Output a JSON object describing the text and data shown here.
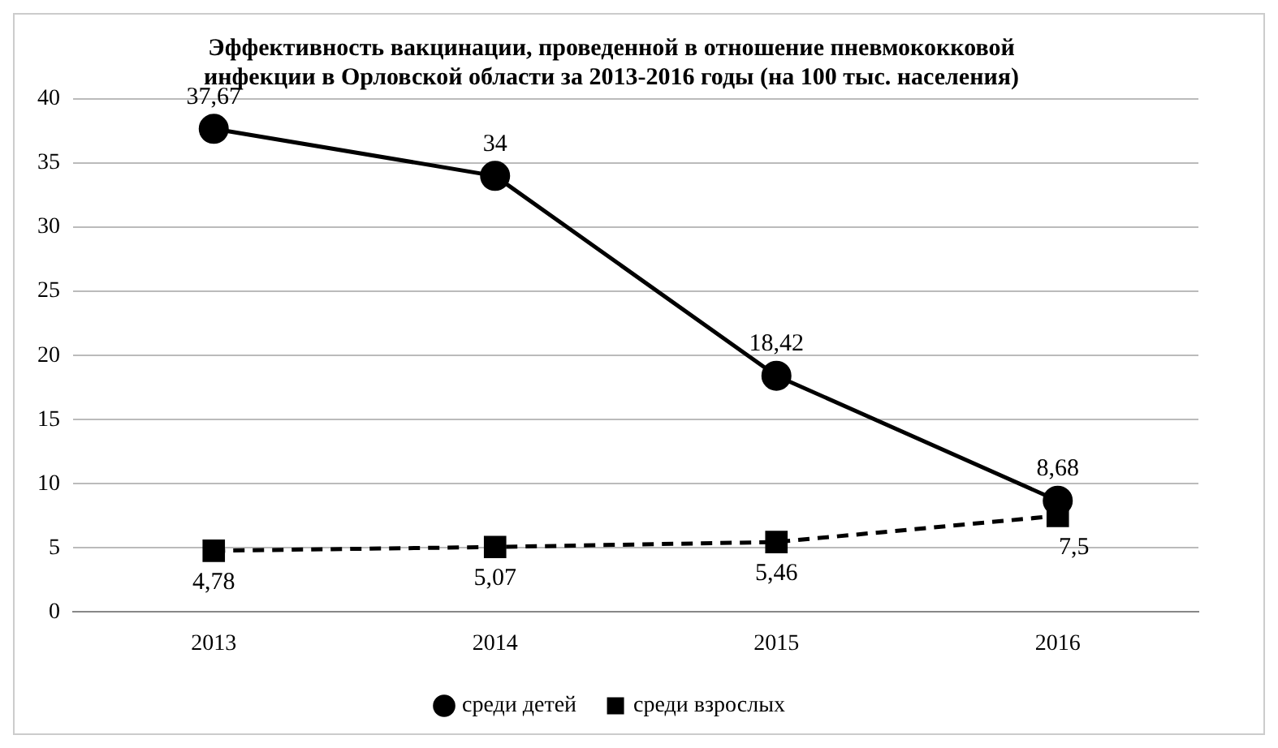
{
  "chart_data": {
    "type": "line",
    "title": "Эффективность вакцинации, проведенной в отношение пневмококковой\nинфекции в Орловской области за 2013-2016 годы (на 100 тыс. населения)",
    "categories": [
      "2013",
      "2014",
      "2015",
      "2016"
    ],
    "series": [
      {
        "name": "среди детей",
        "color": "#000000",
        "values": [
          37.67,
          34,
          18.42,
          8.68
        ],
        "value_labels": [
          "37,67",
          "34",
          "18,42",
          "8,68"
        ],
        "marker": "circle",
        "line_style": "solid"
      },
      {
        "name": "среди взрослых",
        "color": "#000000",
        "values": [
          4.78,
          5.07,
          5.46,
          7.5
        ],
        "value_labels": [
          "4,78",
          "5,07",
          "5,46",
          "7,5"
        ],
        "marker": "square",
        "line_style": "dashed"
      }
    ],
    "ylim": [
      0,
      40
    ],
    "yticks": [
      0,
      5,
      10,
      15,
      20,
      25,
      30,
      35,
      40
    ],
    "grid": "y",
    "legend": "bottom"
  }
}
